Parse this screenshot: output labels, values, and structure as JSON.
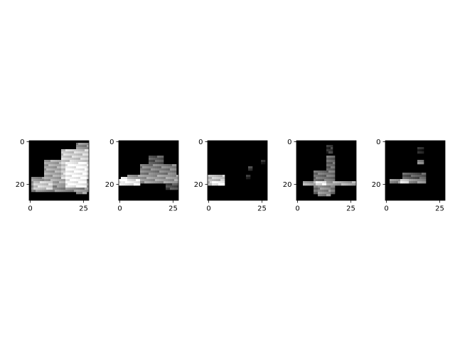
{
  "chart_data": [
    {
      "type": "heatmap",
      "colormap": "gray",
      "grid_size": [
        28,
        28
      ],
      "x_ticks": [
        0,
        25
      ],
      "y_ticks": [
        0,
        20
      ],
      "x_tick_labels": [
        "0",
        "25"
      ],
      "y_tick_labels": [
        "0",
        "20"
      ],
      "regions": [
        {
          "rows": [
            17,
            23
          ],
          "cols": [
            1,
            27
          ],
          "value": 0.55
        },
        {
          "rows": [
            9,
            20
          ],
          "cols": [
            7,
            26
          ],
          "value": 0.65
        },
        {
          "rows": [
            4,
            17
          ],
          "cols": [
            15,
            27
          ],
          "value": 0.8
        },
        {
          "rows": [
            10,
            21
          ],
          "cols": [
            17,
            26
          ],
          "value": 0.95
        },
        {
          "rows": [
            1,
            8
          ],
          "cols": [
            22,
            27
          ],
          "value": 0.55
        },
        {
          "rows": [
            19,
            22
          ],
          "cols": [
            2,
            10
          ],
          "value": 0.8
        },
        {
          "rows": [
            23,
            24
          ],
          "cols": [
            22,
            26
          ],
          "value": 0.6
        }
      ]
    },
    {
      "type": "heatmap",
      "colormap": "gray",
      "grid_size": [
        28,
        28
      ],
      "x_ticks": [
        0,
        25
      ],
      "y_ticks": [
        0,
        20
      ],
      "x_tick_labels": [
        "0",
        "25"
      ],
      "y_tick_labels": [
        "0",
        "20"
      ],
      "regions": [
        {
          "rows": [
            18,
            20
          ],
          "cols": [
            0,
            9
          ],
          "value": 0.9
        },
        {
          "rows": [
            16,
            19
          ],
          "cols": [
            4,
            27
          ],
          "value": 0.6
        },
        {
          "rows": [
            11,
            15
          ],
          "cols": [
            10,
            26
          ],
          "value": 0.5
        },
        {
          "rows": [
            7,
            10
          ],
          "cols": [
            14,
            20
          ],
          "value": 0.35
        },
        {
          "rows": [
            19,
            22
          ],
          "cols": [
            22,
            27
          ],
          "value": 0.3
        },
        {
          "rows": [
            17,
            19
          ],
          "cols": [
            1,
            3
          ],
          "value": 1.0
        }
      ]
    },
    {
      "type": "heatmap",
      "colormap": "gray",
      "grid_size": [
        28,
        28
      ],
      "x_ticks": [
        0,
        25
      ],
      "y_ticks": [
        0,
        20
      ],
      "x_tick_labels": [
        "0",
        "25"
      ],
      "y_tick_labels": [
        "0",
        "20"
      ],
      "regions": [
        {
          "rows": [
            16,
            20
          ],
          "cols": [
            0,
            7
          ],
          "value": 0.75
        },
        {
          "rows": [
            19,
            20
          ],
          "cols": [
            2,
            7
          ],
          "value": 0.95
        },
        {
          "rows": [
            12,
            13
          ],
          "cols": [
            19,
            20
          ],
          "value": 0.25
        },
        {
          "rows": [
            16,
            17
          ],
          "cols": [
            18,
            19
          ],
          "value": 0.2
        },
        {
          "rows": [
            9,
            10
          ],
          "cols": [
            25,
            26
          ],
          "value": 0.15
        }
      ]
    },
    {
      "type": "heatmap",
      "colormap": "gray",
      "grid_size": [
        28,
        28
      ],
      "x_ticks": [
        0,
        25
      ],
      "y_ticks": [
        0,
        20
      ],
      "x_tick_labels": [
        "0",
        "25"
      ],
      "y_tick_labels": [
        "0",
        "20"
      ],
      "regions": [
        {
          "rows": [
            19,
            20
          ],
          "cols": [
            3,
            27
          ],
          "value": 0.65
        },
        {
          "rows": [
            14,
            24
          ],
          "cols": [
            8,
            17
          ],
          "value": 0.45
        },
        {
          "rows": [
            7,
            13
          ],
          "cols": [
            14,
            17
          ],
          "value": 0.4
        },
        {
          "rows": [
            2,
            5
          ],
          "cols": [
            14,
            16
          ],
          "value": 0.2
        },
        {
          "rows": [
            21,
            25
          ],
          "cols": [
            10,
            15
          ],
          "value": 0.55
        },
        {
          "rows": [
            19,
            20
          ],
          "cols": [
            9,
            13
          ],
          "value": 0.9
        }
      ]
    },
    {
      "type": "heatmap",
      "colormap": "gray",
      "grid_size": [
        28,
        28
      ],
      "x_ticks": [
        0,
        25
      ],
      "y_ticks": [
        0,
        20
      ],
      "x_tick_labels": [
        "0",
        "25"
      ],
      "y_tick_labels": [
        "0",
        "20"
      ],
      "regions": [
        {
          "rows": [
            18,
            19
          ],
          "cols": [
            2,
            18
          ],
          "value": 0.55
        },
        {
          "rows": [
            15,
            18
          ],
          "cols": [
            8,
            18
          ],
          "value": 0.35
        },
        {
          "rows": [
            9,
            10
          ],
          "cols": [
            15,
            17
          ],
          "value": 0.5
        },
        {
          "rows": [
            3,
            5
          ],
          "cols": [
            15,
            17
          ],
          "value": 0.15
        },
        {
          "rows": [
            18,
            19
          ],
          "cols": [
            7,
            10
          ],
          "value": 0.85
        }
      ]
    }
  ]
}
